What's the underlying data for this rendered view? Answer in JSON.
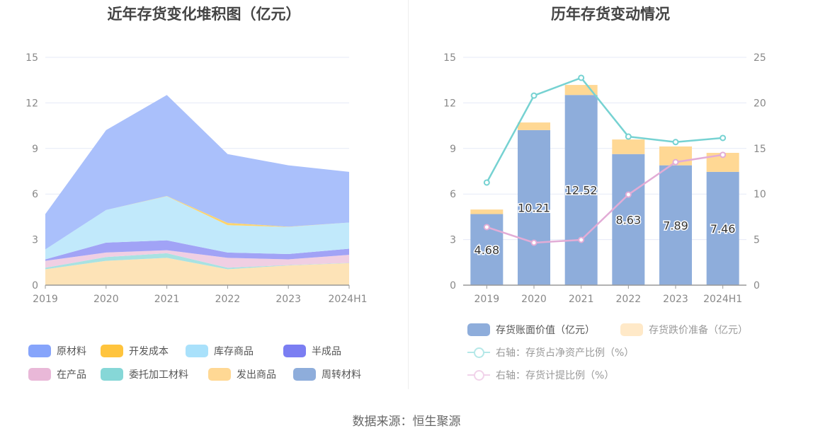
{
  "source": "数据来源：恒生聚源",
  "chart_data": [
    {
      "type": "area",
      "stacked": true,
      "title": "近年存货变化堆积图（亿元）",
      "categories": [
        "2019",
        "2020",
        "2021",
        "2022",
        "2023",
        "2024H1"
      ],
      "ylim": [
        0,
        15
      ],
      "yticks": [
        "0",
        "3",
        "6",
        "9",
        "12",
        "15"
      ],
      "grid": true,
      "legend_position": "bottom",
      "series": [
        {
          "name": "发出商品",
          "color": "#fde3b7",
          "legend_color": "#ffd894",
          "values": [
            1.05,
            1.6,
            1.8,
            1.05,
            1.3,
            1.45
          ]
        },
        {
          "name": "委托加工材料",
          "color": "#a8e2e2",
          "legend_color": "#86d7d7",
          "values": [
            0.1,
            0.25,
            0.3,
            0.1,
            0.02,
            0.02
          ]
        },
        {
          "name": "在产品",
          "color": "#f0cfe3",
          "legend_color": "#e9b8d8",
          "values": [
            0.45,
            0.3,
            0.2,
            0.65,
            0.38,
            0.53
          ]
        },
        {
          "name": "半成品",
          "color": "#a1a3f6",
          "legend_color": "#7b7ef2",
          "values": [
            0.1,
            0.65,
            0.65,
            0.35,
            0.35,
            0.4
          ]
        },
        {
          "name": "库存商品",
          "color": "#c1e9fb",
          "legend_color": "#a9e1fb",
          "values": [
            0.65,
            2.15,
            2.9,
            1.8,
            1.78,
            1.72
          ]
        },
        {
          "name": "开发成本",
          "color": "#ffd46b",
          "legend_color": "#ffc43d",
          "values": [
            0,
            0,
            0.02,
            0.15,
            0.02,
            0
          ]
        },
        {
          "name": "原材料",
          "color": "#aac0fb",
          "legend_color": "#86a4fb",
          "values": [
            2.33,
            5.26,
            6.65,
            4.53,
            4.04,
            3.34
          ]
        },
        {
          "name": "周转材料",
          "color": "#8eaddb",
          "legend_color": "#8eaddb",
          "values": [
            0,
            0,
            0,
            0,
            0,
            0
          ]
        }
      ],
      "legend_order": [
        "原材料",
        "开发成本",
        "库存商品",
        "半成品",
        "在产品",
        "委托加工材料",
        "发出商品",
        "周转材料"
      ]
    },
    {
      "type": "bar",
      "title": "历年存货变动情况",
      "categories": [
        "2019",
        "2020",
        "2021",
        "2022",
        "2023",
        "2024H1"
      ],
      "ylim": [
        0,
        15
      ],
      "yticks": [
        "0",
        "3",
        "6",
        "9",
        "12",
        "15"
      ],
      "y2lim": [
        0,
        25
      ],
      "y2ticks": [
        "0",
        "5",
        "10",
        "15",
        "20",
        "25"
      ],
      "grid": true,
      "legend_position": "bottom",
      "series": [
        {
          "name": "存货账面价值（亿元）",
          "type": "bar",
          "stack": "inv",
          "color": "#8eaddb",
          "values": [
            4.68,
            10.21,
            12.52,
            8.63,
            7.89,
            7.46
          ],
          "labels": [
            "4.68",
            "10.21",
            "12.52",
            "8.63",
            "7.89",
            "7.46"
          ]
        },
        {
          "name": "存货跌价准备（亿元）",
          "type": "bar",
          "stack": "inv",
          "color": "#ffd894",
          "legend_color": "#ffe9c8",
          "values": [
            0.3,
            0.5,
            0.66,
            0.96,
            1.24,
            1.25
          ]
        },
        {
          "name": "右轴：存货占净资产比例（%）",
          "type": "line",
          "axis": "right",
          "color": "#76d2d2",
          "legend_color": "#b5e8e8",
          "values": [
            11.26,
            20.8,
            22.75,
            16.3,
            15.7,
            16.15
          ]
        },
        {
          "name": "右轴：存货计提比例（%）",
          "type": "line",
          "axis": "right",
          "color": "#e2acd6",
          "legend_color": "#f1d3ea",
          "values": [
            6.37,
            4.66,
            4.97,
            9.94,
            13.5,
            14.3
          ]
        }
      ]
    }
  ]
}
